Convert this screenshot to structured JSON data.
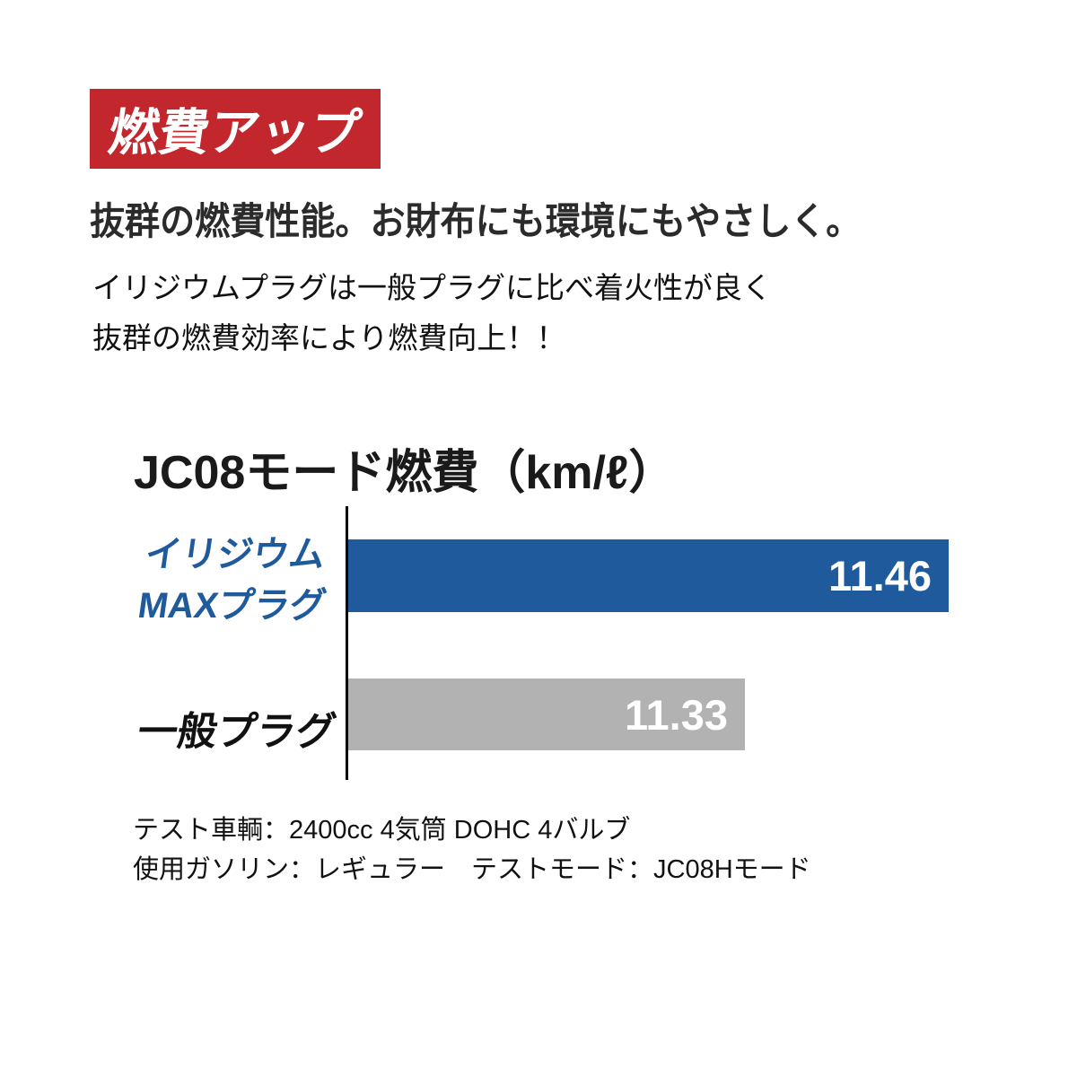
{
  "badge": {
    "label": "燃費アップ",
    "bg_color": "#c1272d",
    "text_color": "#ffffff"
  },
  "headline": "抜群の燃費性能。お財布にも環境にもやさしく。",
  "description": {
    "line1": "イリジウムプラグは一般プラグに比べ着火性が良く",
    "line2": "抜群の燃費効率により燃費向上！！"
  },
  "chart_data": {
    "type": "bar",
    "orientation": "horizontal",
    "title": "JC08モード燃費（km/ℓ）",
    "unit": "km/ℓ",
    "categories": [
      "イリジウムMAXプラグ",
      "一般プラグ"
    ],
    "values": [
      11.46,
      11.33
    ],
    "series": [
      {
        "name": "イリジウムMAXプラグ",
        "label_lines": [
          "イリジウム",
          "MAXプラグ"
        ],
        "value": 11.46,
        "value_label": "11.46",
        "bar_color": "#1f5a9c",
        "label_color": "#1f5a9c"
      },
      {
        "name": "一般プラグ",
        "label_lines": [
          "一般プラグ"
        ],
        "value": 11.33,
        "value_label": "11.33",
        "bar_color": "#b2b2b2",
        "label_color": "#111111"
      }
    ],
    "value_labels_inside_bars": true,
    "grid": false,
    "legend": "none",
    "axis": {
      "baseline_color": "#000000",
      "x_origin_truncated": true,
      "implied_x_origin": 11.08,
      "xlim": [
        11.08,
        11.46
      ]
    }
  },
  "footnotes": {
    "line1": "テスト車輌：2400cc 4気筒 DOHC 4バルブ",
    "line2": "使用ガソリン：レギュラー　テストモード：JC08Hモード"
  }
}
